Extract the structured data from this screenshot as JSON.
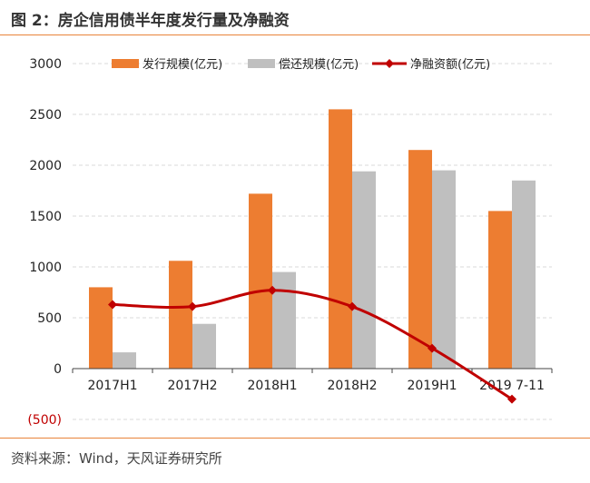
{
  "figure": {
    "title": "图 2：房企信用债半年度发行量及净融资",
    "source": "资料来源：Wind，天风证券研究所"
  },
  "colors": {
    "issuance": "#ed7d31",
    "repayment": "#bfbfbf",
    "net": "#c00000",
    "grid": "#d9d9d9",
    "rule": "#e8833a"
  },
  "chart_data": {
    "type": "bar",
    "categories": [
      "2017H1",
      "2017H2",
      "2018H1",
      "2018H2",
      "2019H1",
      "2019 7-11"
    ],
    "series": [
      {
        "name": "发行规模(亿元)",
        "type": "bar",
        "values": [
          800,
          1060,
          1720,
          2550,
          2150,
          1550
        ]
      },
      {
        "name": "偿还规模(亿元)",
        "type": "bar",
        "values": [
          160,
          440,
          950,
          1940,
          1950,
          1850
        ]
      },
      {
        "name": "净融资额(亿元)",
        "type": "line",
        "values": [
          630,
          610,
          770,
          610,
          200,
          -300
        ]
      }
    ],
    "ylim": [
      -500,
      3000
    ],
    "yticks": [
      "(500)",
      "0",
      "500",
      "1000",
      "1500",
      "2000",
      "2500",
      "3000"
    ],
    "ytick_values": [
      -500,
      0,
      500,
      1000,
      1500,
      2000,
      2500,
      3000
    ],
    "grid": "horizontal dashed",
    "legend": "top"
  }
}
